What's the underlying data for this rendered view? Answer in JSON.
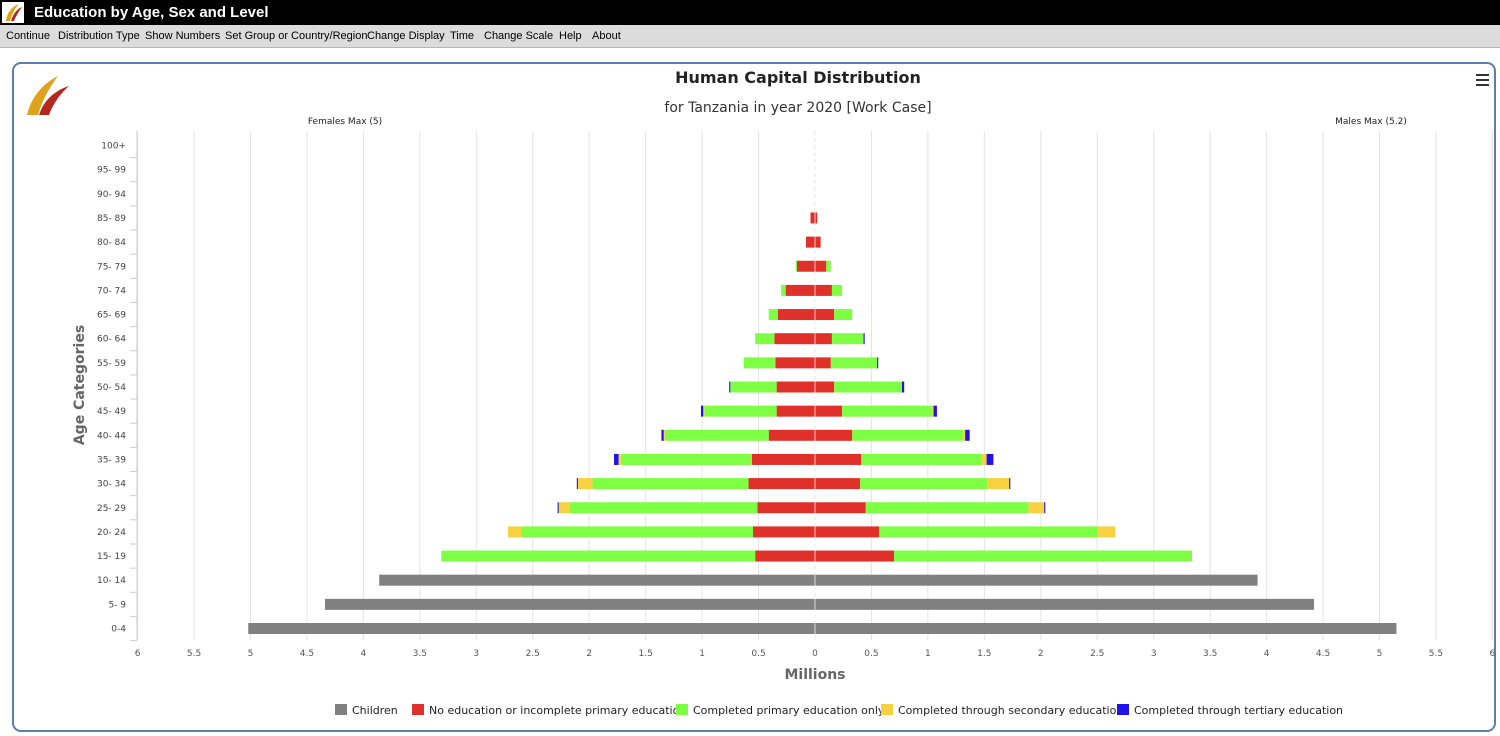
{
  "window": {
    "title": "Education by Age, Sex and Level",
    "logo_icon": "iiasa-leaf-logo-icon"
  },
  "menu": [
    "Continue",
    "Distribution Type",
    "Show Numbers",
    "Set Group or Country/Region",
    "Change Display",
    "Time",
    "Change Scale",
    "Help",
    "About"
  ],
  "chart_menu_icon": "hamburger-menu-icon",
  "chart_data": {
    "type": "bar",
    "orientation": "horizontal-population-pyramid",
    "stacked": true,
    "title": "Human Capital Distribution",
    "subtitle": "for Tanzania in year 2020 [Work Case]",
    "ylabel": "Age Categories",
    "xlabel": "Millions",
    "females_max_label": "Females Max (5)",
    "males_max_label": "Males Max (5.2)",
    "xlim": [
      -6,
      6
    ],
    "x_ticks": [
      6,
      5.5,
      5,
      4.5,
      4,
      3.5,
      3,
      2.5,
      2,
      1.5,
      1,
      0.5,
      0,
      0.5,
      1,
      1.5,
      2,
      2.5,
      3,
      3.5,
      4,
      4.5,
      5,
      5.5,
      6
    ],
    "categories": [
      "0-4",
      "5- 9",
      "10- 14",
      "15- 19",
      "20- 24",
      "25- 29",
      "30- 34",
      "35- 39",
      "40- 44",
      "45- 49",
      "50- 54",
      "55- 59",
      "60- 64",
      "65- 69",
      "70- 74",
      "75- 79",
      "80- 84",
      "85- 89",
      "90- 94",
      "95- 99",
      "100+"
    ],
    "legend_position": "bottom",
    "series": [
      {
        "name": "Children",
        "color": "#808080",
        "female": [
          5.02,
          4.34,
          3.86,
          0,
          0,
          0,
          0,
          0,
          0,
          0,
          0,
          0,
          0,
          0,
          0,
          0,
          0,
          0,
          0,
          0,
          0
        ],
        "male": [
          5.15,
          4.42,
          3.92,
          0,
          0,
          0,
          0,
          0,
          0,
          0,
          0,
          0,
          0,
          0,
          0,
          0,
          0,
          0,
          0,
          0,
          0
        ]
      },
      {
        "name": "No education or incomplete primary education",
        "color": "#e0302a",
        "female": [
          0,
          0,
          0,
          0.53,
          0.55,
          0.51,
          0.59,
          0.56,
          0.41,
          0.34,
          0.34,
          0.35,
          0.36,
          0.33,
          0.26,
          0.16,
          0.08,
          0.04,
          0,
          0,
          0
        ],
        "male": [
          0,
          0,
          0,
          0.7,
          0.57,
          0.45,
          0.4,
          0.41,
          0.33,
          0.24,
          0.17,
          0.14,
          0.15,
          0.17,
          0.15,
          0.1,
          0.05,
          0.02,
          0,
          0,
          0
        ]
      },
      {
        "name": "Completed primary education only",
        "color": "#7fff44",
        "female": [
          0,
          0,
          0,
          2.78,
          2.05,
          1.66,
          1.38,
          1.16,
          0.92,
          0.64,
          0.41,
          0.28,
          0.17,
          0.08,
          0.04,
          0.01,
          0,
          0,
          0,
          0,
          0
        ],
        "male": [
          0,
          0,
          0,
          2.64,
          1.93,
          1.44,
          1.13,
          1.07,
          0.98,
          0.8,
          0.6,
          0.41,
          0.28,
          0.16,
          0.09,
          0.04,
          0,
          0,
          0,
          0,
          0
        ]
      },
      {
        "name": "Completed through secondary education",
        "color": "#f7d140",
        "female": [
          0,
          0,
          0,
          0,
          0.12,
          0.1,
          0.13,
          0.02,
          0.01,
          0.01,
          0,
          0,
          0,
          0,
          0,
          0,
          0,
          0,
          0,
          0,
          0
        ],
        "male": [
          0,
          0,
          0,
          0,
          0.16,
          0.14,
          0.19,
          0.04,
          0.02,
          0.01,
          0,
          0,
          0,
          0,
          0,
          0,
          0,
          0,
          0,
          0,
          0
        ]
      },
      {
        "name": "Completed through tertiary education",
        "color": "#1f14e8",
        "female": [
          0,
          0,
          0,
          0,
          0,
          0.01,
          0.01,
          0.04,
          0.02,
          0.02,
          0.01,
          0,
          0,
          0,
          0,
          0,
          0,
          0,
          0,
          0,
          0
        ],
        "male": [
          0,
          0,
          0,
          0,
          0,
          0.01,
          0.01,
          0.06,
          0.04,
          0.03,
          0.02,
          0.01,
          0.01,
          0,
          0,
          0,
          0,
          0,
          0,
          0,
          0
        ]
      }
    ]
  }
}
